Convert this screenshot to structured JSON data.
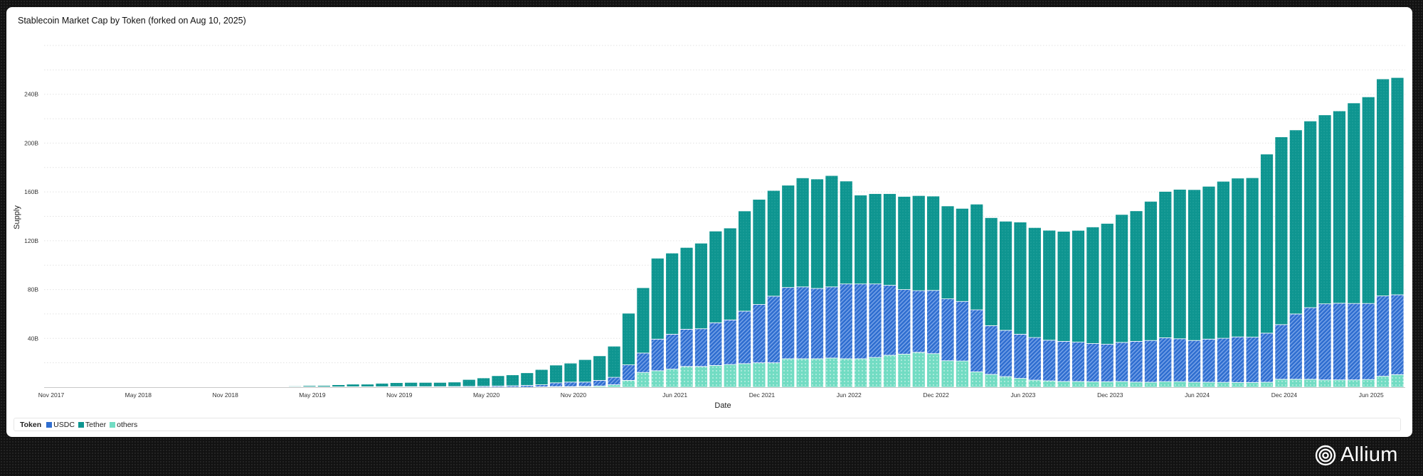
{
  "title": "Stablecoin Market Cap by Token (forked on Aug 10, 2025)",
  "brand": "Allium",
  "legend": {
    "title": "Token",
    "items": [
      {
        "name": "USDC",
        "color": "#2f6ed0"
      },
      {
        "name": "Tether",
        "color": "#0e9590"
      },
      {
        "name": "others",
        "color": "#72dcc3"
      }
    ]
  },
  "chart_data": {
    "type": "bar",
    "stacked": true,
    "title": "Stablecoin Market Cap by Token (forked on Aug 10, 2025)",
    "xlabel": "Date",
    "ylabel": "Supply",
    "ylim": [
      0,
      280
    ],
    "yunit": "B",
    "yticks": [
      40,
      80,
      120,
      160,
      200,
      240
    ],
    "yticklabels": [
      "40B",
      "80B",
      "120B",
      "160B",
      "200B",
      "240B"
    ],
    "grid": true,
    "legend_position": "bottom",
    "start_month": "Nov 2017",
    "end_month": "Aug 2025",
    "xticks": [
      {
        "index": 0,
        "label": "Nov 2017"
      },
      {
        "index": 6,
        "label": "May 2018"
      },
      {
        "index": 12,
        "label": "Nov 2018"
      },
      {
        "index": 18,
        "label": "May 2019"
      },
      {
        "index": 24,
        "label": "Nov 2019"
      },
      {
        "index": 30,
        "label": "May 2020"
      },
      {
        "index": 36,
        "label": "Nov 2020"
      },
      {
        "index": 43,
        "label": "Jun 2021"
      },
      {
        "index": 49,
        "label": "Dec 2021"
      },
      {
        "index": 55,
        "label": "Jun 2022"
      },
      {
        "index": 61,
        "label": "Dec 2022"
      },
      {
        "index": 67,
        "label": "Jun 2023"
      },
      {
        "index": 73,
        "label": "Dec 2023"
      },
      {
        "index": 79,
        "label": "Jun 2024"
      },
      {
        "index": 85,
        "label": "Dec 2024"
      },
      {
        "index": 91,
        "label": "Jun 2025"
      }
    ],
    "series": [
      {
        "name": "others",
        "color": "#72dcc3",
        "values": [
          0,
          0,
          0,
          0,
          0,
          0,
          0,
          0,
          0,
          0,
          0,
          0,
          0,
          0,
          0,
          0,
          0,
          0,
          0,
          0,
          0,
          0,
          0,
          0,
          0,
          0,
          0,
          0,
          0,
          0,
          0,
          0,
          0,
          0,
          0.3,
          0.5,
          0.5,
          0.7,
          1,
          2,
          5.6,
          12.1,
          13.5,
          14.8,
          17,
          17,
          17.8,
          18.6,
          19.3,
          20,
          20,
          23.3,
          23.3,
          23.3,
          23.9,
          23.3,
          23.3,
          24.4,
          26.2,
          27.1,
          28.6,
          27.5,
          21.7,
          21.5,
          12.6,
          10.5,
          8.7,
          7.2,
          5.8,
          5.2,
          4.7,
          4.7,
          4.5,
          4.5,
          4.7,
          4.2,
          4.1,
          4.6,
          4.6,
          4.1,
          4.1,
          4,
          3.9,
          3.9,
          4.1,
          6.5,
          6.5,
          6.5,
          6,
          6,
          6,
          6.3,
          9,
          10.3
        ]
      },
      {
        "name": "USDC",
        "color": "#2f6ed0",
        "values": [
          0.05,
          0.05,
          0.05,
          0.05,
          0.05,
          0.05,
          0.05,
          0.05,
          0.05,
          0.05,
          0.1,
          0.1,
          0.1,
          0.2,
          0.3,
          0.2,
          0.3,
          0.3,
          0.3,
          0.3,
          0.3,
          0.4,
          0.4,
          0.4,
          0.5,
          0.5,
          0.5,
          0.5,
          0.6,
          0.7,
          0.8,
          1.0,
          1.2,
          1.5,
          1.7,
          3.1,
          3.7,
          3.5,
          4.6,
          6.1,
          12.7,
          15.9,
          25.9,
          28.6,
          30.5,
          30.9,
          35,
          36.5,
          43,
          47.8,
          54.6,
          58.4,
          58.9,
          57.6,
          58.3,
          61.3,
          61.3,
          60.2,
          57.3,
          52.9,
          50.5,
          51.8,
          50.7,
          48.8,
          50.8,
          39.9,
          37.9,
          36.2,
          34.9,
          33.3,
          32.9,
          32.2,
          31.3,
          30.7,
          32,
          33.4,
          34.2,
          35.9,
          35.1,
          34.2,
          35.3,
          36.1,
          37.3,
          37.1,
          40.2,
          44.8,
          53.5,
          58.7,
          62.3,
          62.8,
          62.6,
          62.3,
          65.8,
          65.4
        ]
      },
      {
        "name": "Tether",
        "color": "#0e9590",
        "values": [
          0.05,
          0.05,
          0.05,
          0.05,
          0.05,
          0.05,
          0.05,
          0.05,
          0.05,
          0.05,
          0.1,
          0.1,
          0.2,
          0.2,
          0.4,
          0.3,
          0.4,
          0.6,
          1.0,
          1.1,
          1.7,
          2.1,
          2.1,
          2.8,
          3.2,
          3.4,
          3.4,
          3.4,
          3.6,
          5.6,
          6.8,
          8.4,
          8.9,
          10.3,
          12.5,
          14.5,
          15.5,
          18.4,
          20.1,
          25.5,
          42.3,
          53.5,
          66.3,
          66.5,
          67,
          70.1,
          75.1,
          75.3,
          82.1,
          86.1,
          86.6,
          83.8,
          89.3,
          89.7,
          91.2,
          84.3,
          72.8,
          74,
          75.1,
          76.3,
          77.9,
          77.3,
          76.1,
          76.2,
          86.6,
          88.5,
          89.4,
          91.9,
          90.1,
          90.1,
          90.1,
          91.6,
          95.5,
          99,
          104.8,
          106.9,
          114,
          119.9,
          122.4,
          123.6,
          125.2,
          128.6,
          130.1,
          130.6,
          146.7,
          153.8,
          150.8,
          152.9,
          154.8,
          157.6,
          164.3,
          169.3,
          177.8,
          178
        ]
      }
    ]
  }
}
